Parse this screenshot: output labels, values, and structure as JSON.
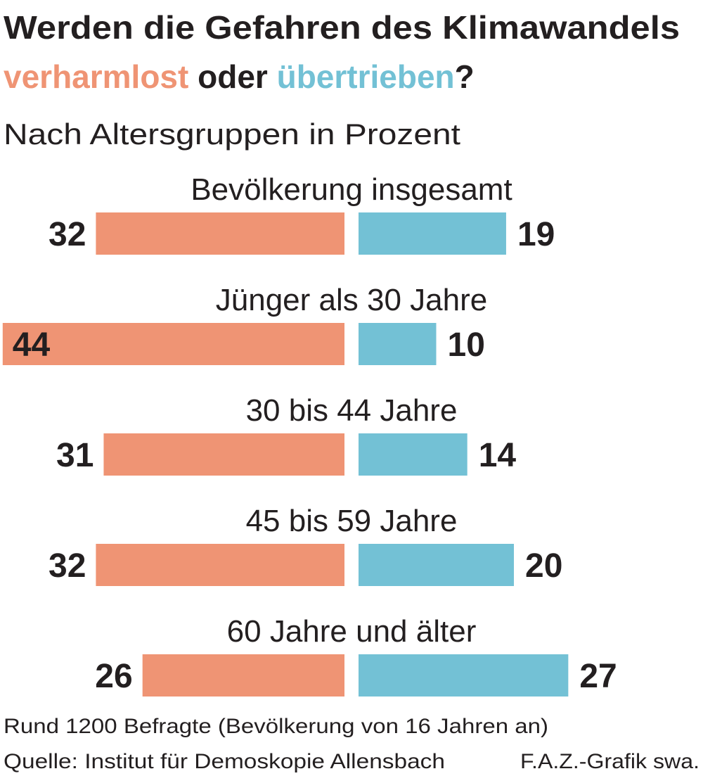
{
  "chart_data": {
    "type": "diverging_bar",
    "title": "Werden die Gefahren des Klimawandels",
    "title_connector": "oder",
    "title_end": "?",
    "subtitle": "Nach Altersgruppen in Prozent",
    "categories": [
      "Bevölkerung insgesamt",
      "Jünger als 30 Jahre",
      "30 bis 44 Jahre",
      "45 bis 59 Jahre",
      "60 Jahre und älter"
    ],
    "series": [
      {
        "name": "verharmlost",
        "color": "#ef9474",
        "values": [
          32,
          44,
          31,
          32,
          26
        ]
      },
      {
        "name": "übertrieben",
        "color": "#73c1d5",
        "values": [
          19,
          10,
          14,
          20,
          27
        ]
      }
    ],
    "notes": [
      "Rund 1200 Befragte (Bevölkerung von 16 Jahren an)",
      "Quelle: Institut für Demoskopie Allensbach"
    ],
    "credit": "F.A.Z.-Grafik swa."
  }
}
